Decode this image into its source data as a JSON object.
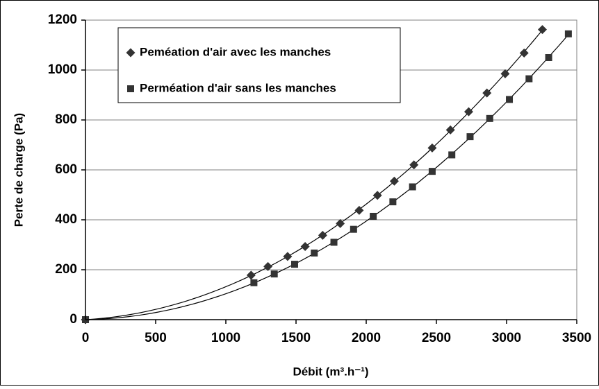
{
  "chart_data": {
    "type": "scatter",
    "xlabel": "Débit (m³.h⁻¹)",
    "ylabel": "Perte de charge (Pa)",
    "xlim": [
      0,
      3500
    ],
    "xticks": [
      0,
      500,
      1000,
      1500,
      2000,
      2500,
      3000,
      3500
    ],
    "ylim": [
      0,
      1200
    ],
    "yticks": [
      0,
      200,
      400,
      600,
      800,
      1000,
      1200
    ],
    "grid": true,
    "legend": "top-left",
    "series": [
      {
        "name": "Peméation d'air avec les manches",
        "color": "#333333",
        "marker": "diamond",
        "x": [
          0,
          1180,
          1300,
          1440,
          1565,
          1690,
          1815,
          1950,
          2080,
          2200,
          2340,
          2470,
          2600,
          2730,
          2860,
          2990,
          3125,
          3255
        ],
        "values": [
          0,
          178,
          213,
          253,
          293,
          338,
          385,
          438,
          498,
          555,
          620,
          688,
          760,
          833,
          908,
          985,
          1068,
          1162
        ]
      },
      {
        "name": "Perméation d'air sans les manches",
        "color": "#333333",
        "marker": "square",
        "x": [
          0,
          1200,
          1345,
          1490,
          1630,
          1770,
          1910,
          2050,
          2190,
          2330,
          2470,
          2610,
          2740,
          2880,
          3020,
          3160,
          3300,
          3440
        ],
        "values": [
          0,
          148,
          183,
          222,
          267,
          310,
          362,
          414,
          472,
          532,
          594,
          660,
          733,
          806,
          882,
          965,
          1050,
          1145
        ]
      }
    ]
  }
}
